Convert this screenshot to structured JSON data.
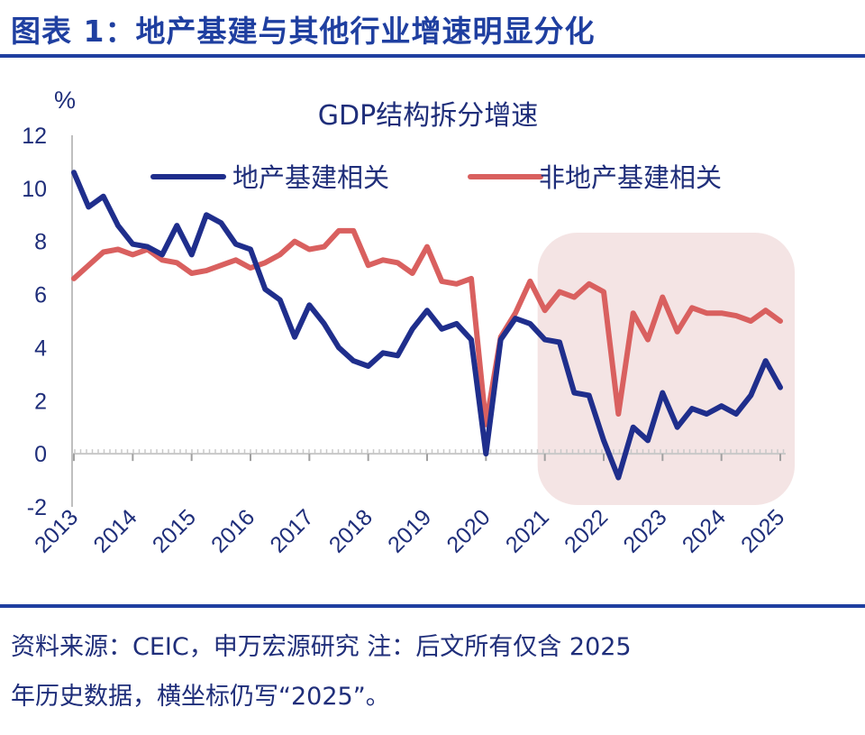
{
  "figure": {
    "title": "图表 1：地产基建与其他行业增速明显分化",
    "source_line1": "资料来源：CEIC，申万宏源研究  注：后文所有仅含 2025",
    "source_line2": "年历史数据，横坐标仍写“2025”。"
  },
  "colors": {
    "accent": "#1f3fa0",
    "series1": "#1f2e8c",
    "series2": "#d9605f",
    "highlight": "#f4e4e4",
    "text": "#1f2e7a"
  },
  "chart_data": {
    "type": "line",
    "title": "GDP结构拆分增速",
    "ylabel": "%",
    "ylim": [
      -2,
      12
    ],
    "yticks": [
      "12",
      "10",
      "8",
      "6",
      "4",
      "2",
      "0",
      "-2"
    ],
    "xticks": [
      "2013",
      "2014",
      "2015",
      "2016",
      "2017",
      "2018",
      "2019",
      "2020",
      "2021",
      "2022",
      "2023",
      "2024",
      "2025"
    ],
    "grid": false,
    "legend_position": "top",
    "highlight_region": {
      "from": "2021",
      "to": "2025"
    },
    "series": [
      {
        "name": "地产基建相关",
        "points": [
          [
            2013.0,
            10.6
          ],
          [
            2013.25,
            9.3
          ],
          [
            2013.5,
            9.7
          ],
          [
            2013.75,
            8.6
          ],
          [
            2014.0,
            7.9
          ],
          [
            2014.25,
            7.8
          ],
          [
            2014.5,
            7.5
          ],
          [
            2014.75,
            8.6
          ],
          [
            2015.0,
            7.5
          ],
          [
            2015.25,
            9.0
          ],
          [
            2015.5,
            8.7
          ],
          [
            2015.75,
            7.9
          ],
          [
            2016.0,
            7.7
          ],
          [
            2016.25,
            6.2
          ],
          [
            2016.5,
            5.8
          ],
          [
            2016.75,
            4.4
          ],
          [
            2017.0,
            5.6
          ],
          [
            2017.25,
            4.9
          ],
          [
            2017.5,
            4.0
          ],
          [
            2017.75,
            3.5
          ],
          [
            2018.0,
            3.3
          ],
          [
            2018.25,
            3.8
          ],
          [
            2018.5,
            3.7
          ],
          [
            2018.75,
            4.7
          ],
          [
            2019.0,
            5.4
          ],
          [
            2019.25,
            4.7
          ],
          [
            2019.5,
            4.9
          ],
          [
            2019.75,
            4.3
          ],
          [
            2020.0,
            0.0
          ],
          [
            2020.25,
            4.3
          ],
          [
            2020.5,
            5.1
          ],
          [
            2020.75,
            4.9
          ],
          [
            2021.0,
            4.3
          ],
          [
            2021.25,
            4.2
          ],
          [
            2021.5,
            2.3
          ],
          [
            2021.75,
            2.2
          ],
          [
            2022.0,
            0.5
          ],
          [
            2022.25,
            -0.9
          ],
          [
            2022.5,
            1.0
          ],
          [
            2022.75,
            0.5
          ],
          [
            2023.0,
            2.3
          ],
          [
            2023.25,
            1.0
          ],
          [
            2023.5,
            1.7
          ],
          [
            2023.75,
            1.5
          ],
          [
            2024.0,
            1.8
          ],
          [
            2024.25,
            1.5
          ],
          [
            2024.5,
            2.2
          ],
          [
            2024.75,
            3.5
          ],
          [
            2025.0,
            2.5
          ]
        ]
      },
      {
        "name": "非地产基建相关",
        "points": [
          [
            2013.0,
            6.6
          ],
          [
            2013.25,
            7.1
          ],
          [
            2013.5,
            7.6
          ],
          [
            2013.75,
            7.7
          ],
          [
            2014.0,
            7.5
          ],
          [
            2014.25,
            7.7
          ],
          [
            2014.5,
            7.3
          ],
          [
            2014.75,
            7.2
          ],
          [
            2015.0,
            6.8
          ],
          [
            2015.25,
            6.9
          ],
          [
            2015.5,
            7.1
          ],
          [
            2015.75,
            7.3
          ],
          [
            2016.0,
            7.0
          ],
          [
            2016.25,
            7.2
          ],
          [
            2016.5,
            7.5
          ],
          [
            2016.75,
            8.0
          ],
          [
            2017.0,
            7.7
          ],
          [
            2017.25,
            7.8
          ],
          [
            2017.5,
            8.4
          ],
          [
            2017.75,
            8.4
          ],
          [
            2018.0,
            7.1
          ],
          [
            2018.25,
            7.3
          ],
          [
            2018.5,
            7.2
          ],
          [
            2018.75,
            6.8
          ],
          [
            2019.0,
            7.8
          ],
          [
            2019.25,
            6.5
          ],
          [
            2019.5,
            6.4
          ],
          [
            2019.75,
            6.6
          ],
          [
            2020.0,
            1.1
          ],
          [
            2020.25,
            4.4
          ],
          [
            2020.5,
            5.3
          ],
          [
            2020.75,
            6.5
          ],
          [
            2021.0,
            5.4
          ],
          [
            2021.25,
            6.1
          ],
          [
            2021.5,
            5.9
          ],
          [
            2021.75,
            6.4
          ],
          [
            2022.0,
            6.1
          ],
          [
            2022.25,
            1.5
          ],
          [
            2022.5,
            5.3
          ],
          [
            2022.75,
            4.3
          ],
          [
            2023.0,
            5.9
          ],
          [
            2023.25,
            4.6
          ],
          [
            2023.5,
            5.5
          ],
          [
            2023.75,
            5.3
          ],
          [
            2024.0,
            5.3
          ],
          [
            2024.25,
            5.2
          ],
          [
            2024.5,
            5.0
          ],
          [
            2024.75,
            5.4
          ],
          [
            2025.0,
            5.0
          ]
        ]
      }
    ]
  }
}
